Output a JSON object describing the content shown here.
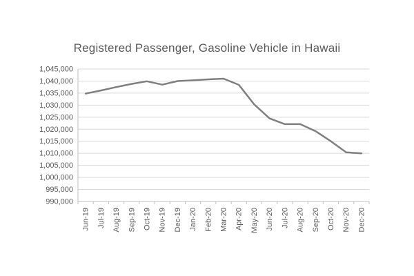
{
  "chart_data": {
    "type": "line",
    "title": "Registered Passenger, Gasoline Vehicle in Hawaii",
    "categories": [
      "Jun-19",
      "Jul-19",
      "Aug-19",
      "Sep-19",
      "Oct-19",
      "Nov-19",
      "Dec-19",
      "Jan-20",
      "Feb-20",
      "Mar-20",
      "Apr-20",
      "May-20",
      "Jun-20",
      "Jul-20",
      "Aug-20",
      "Sep-20",
      "Oct-20",
      "Nov-20",
      "Dec-20"
    ],
    "values": [
      1034800,
      1036100,
      1037500,
      1038800,
      1039900,
      1038500,
      1040000,
      1040300,
      1040700,
      1041000,
      1038400,
      1030300,
      1024500,
      1022100,
      1022100,
      1019200,
      1015000,
      1010400,
      1010000
    ],
    "xlabel": "",
    "ylabel": "",
    "ylim": [
      990000,
      1045000
    ],
    "ytick_step": 5000,
    "ytick_labels": [
      "1,045,000",
      "1,040,000",
      "1,035,000",
      "1,030,000",
      "1,025,000",
      "1,020,000",
      "1,015,000",
      "1,010,000",
      "1,005,000",
      "1,000,000",
      "995,000",
      "990,000"
    ],
    "grid": "horizontal",
    "legend_position": "none",
    "line_color": "#7f7f7f",
    "gridline_color": "#d9d9d9",
    "axis_line_color": "#bfbfbf",
    "text_color": "#595959"
  }
}
